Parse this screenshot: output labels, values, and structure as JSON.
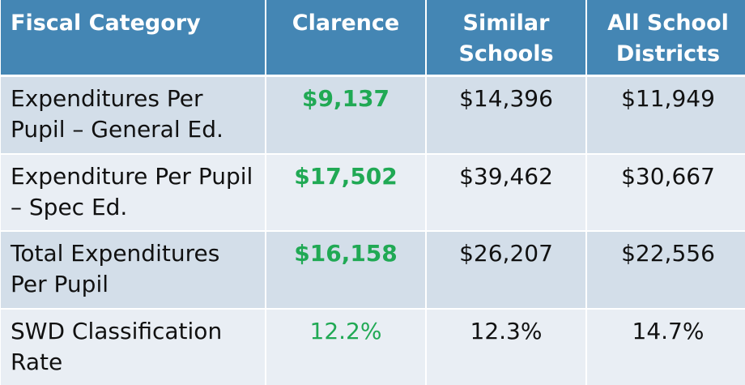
{
  "table": {
    "headers": [
      "Fiscal Category",
      "Clarence",
      "Similar Schools",
      "All School Districts"
    ],
    "rows": [
      {
        "category": "Expenditures Per Pupil – General Ed.",
        "clarence": "$9,137",
        "similar": "$14,396",
        "all": "$11,949"
      },
      {
        "category": "Expenditure Per Pupil – Spec Ed.",
        "clarence": "$17,502",
        "similar": "$39,462",
        "all": "$30,667"
      },
      {
        "category": "Total Expenditures Per Pupil",
        "clarence": "$16,158",
        "similar": "$26,207",
        "all": "$22,556"
      },
      {
        "category": "SWD Classification Rate",
        "clarence": "12.2%",
        "similar": "12.3%",
        "all": "14.7%"
      }
    ]
  },
  "colors": {
    "header_bg": "#4486b4",
    "row_dark": "#d3dee9",
    "row_light": "#e9eef4",
    "highlight_text": "#20a954"
  }
}
